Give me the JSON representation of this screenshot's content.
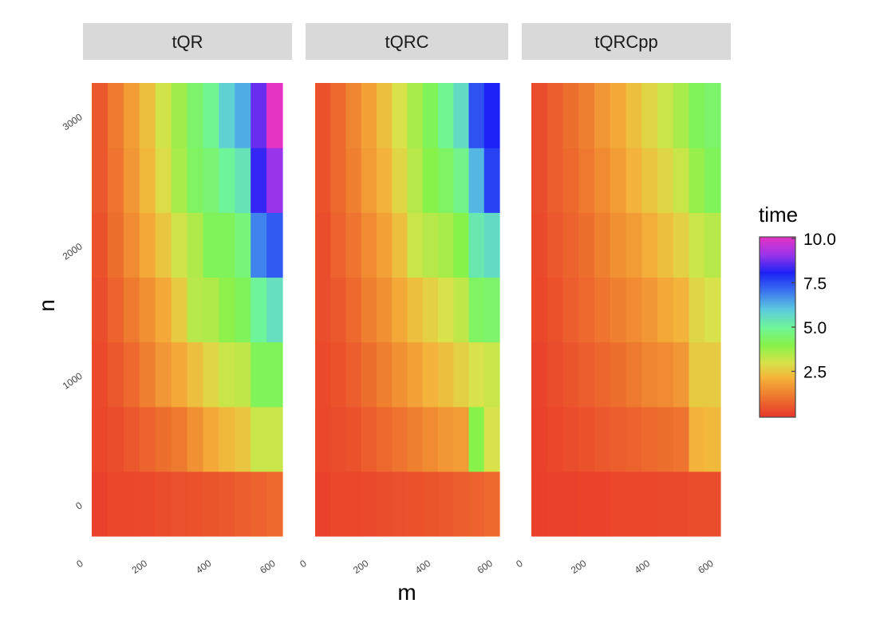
{
  "chart_data": {
    "type": "heatmap",
    "xlabel": "m",
    "ylabel": "n",
    "x_ticks": [
      "0",
      "200",
      "400",
      "600"
    ],
    "y_ticks": [
      "0",
      "1000",
      "2000",
      "3000"
    ],
    "x_range": [
      0,
      620
    ],
    "y_range": [
      -250,
      3250
    ],
    "x_values": [
      25,
      75,
      125,
      175,
      225,
      275,
      325,
      375,
      425,
      475,
      525,
      575
    ],
    "y_values": [
      0,
      500,
      1000,
      1500,
      2000,
      2500,
      3000
    ],
    "color_scale": {
      "title": "time",
      "ticks": [
        "2.5",
        "5.0",
        "7.5",
        "10.0"
      ],
      "min": 0,
      "max": 10,
      "stops": [
        {
          "v": 0.0,
          "color": "#e8362a"
        },
        {
          "v": 1.2,
          "color": "#ee7a2f"
        },
        {
          "v": 2.2,
          "color": "#f4b33a"
        },
        {
          "v": 3.0,
          "color": "#d8e24a"
        },
        {
          "v": 4.0,
          "color": "#86f24a"
        },
        {
          "v": 5.0,
          "color": "#6ef59a"
        },
        {
          "v": 6.0,
          "color": "#5bc8e0"
        },
        {
          "v": 7.0,
          "color": "#3a72f0"
        },
        {
          "v": 8.0,
          "color": "#1c22f5"
        },
        {
          "v": 9.0,
          "color": "#9a34ea"
        },
        {
          "v": 10.0,
          "color": "#e534c4"
        }
      ]
    },
    "facets": [
      {
        "label": "tQR",
        "z": [
          [
            0.2,
            0.3,
            0.3,
            0.35,
            0.4,
            0.45,
            0.5,
            0.55,
            0.6,
            0.7,
            0.8,
            0.9
          ],
          [
            0.3,
            0.4,
            0.6,
            0.8,
            1.0,
            1.2,
            1.6,
            2.0,
            2.3,
            2.5,
            3.2,
            3.2
          ],
          [
            0.35,
            0.6,
            0.9,
            1.3,
            1.7,
            2.0,
            2.4,
            2.8,
            3.2,
            3.3,
            4.2,
            4.2
          ],
          [
            0.4,
            0.8,
            1.2,
            1.6,
            2.0,
            2.6,
            3.4,
            3.5,
            3.9,
            4.2,
            5.0,
            5.5
          ],
          [
            0.5,
            1.0,
            1.5,
            2.0,
            2.5,
            3.1,
            3.5,
            4.2,
            4.2,
            4.6,
            6.8,
            7.3
          ],
          [
            0.6,
            1.1,
            1.7,
            2.3,
            2.9,
            3.6,
            4.3,
            4.5,
            5.0,
            5.4,
            8.2,
            9.0
          ],
          [
            0.6,
            1.2,
            1.8,
            2.4,
            3.1,
            3.7,
            4.4,
            4.9,
            5.8,
            6.3,
            8.6,
            10.0
          ]
        ]
      },
      {
        "label": "tQRC",
        "z": [
          [
            0.2,
            0.3,
            0.3,
            0.35,
            0.4,
            0.45,
            0.5,
            0.55,
            0.6,
            0.7,
            0.8,
            0.9
          ],
          [
            0.3,
            0.4,
            0.5,
            0.7,
            0.9,
            1.1,
            1.3,
            1.5,
            1.7,
            1.8,
            4.0,
            3.0
          ],
          [
            0.35,
            0.5,
            0.7,
            1.0,
            1.3,
            1.6,
            1.9,
            2.2,
            2.4,
            2.7,
            3.0,
            3.2
          ],
          [
            0.4,
            0.6,
            0.9,
            1.3,
            1.6,
            2.0,
            2.4,
            2.7,
            3.0,
            3.3,
            4.3,
            4.4
          ],
          [
            0.4,
            0.8,
            1.1,
            1.5,
            1.9,
            2.4,
            3.2,
            3.4,
            3.6,
            4.0,
            5.3,
            5.6
          ],
          [
            0.5,
            0.9,
            1.3,
            1.8,
            2.2,
            2.8,
            3.4,
            4.0,
            4.3,
            4.8,
            6.2,
            7.6
          ],
          [
            0.5,
            0.9,
            1.4,
            1.9,
            2.4,
            3.0,
            3.6,
            4.2,
            4.9,
            5.6,
            7.4,
            8.0
          ]
        ]
      },
      {
        "label": "tQRCpp",
        "z": [
          [
            0.15,
            0.2,
            0.2,
            0.25,
            0.25,
            0.3,
            0.3,
            0.3,
            0.35,
            0.35,
            0.4,
            0.4
          ],
          [
            0.2,
            0.3,
            0.4,
            0.5,
            0.6,
            0.7,
            0.8,
            0.9,
            1.0,
            1.1,
            2.2,
            2.3
          ],
          [
            0.25,
            0.4,
            0.55,
            0.7,
            0.85,
            1.0,
            1.2,
            1.4,
            1.5,
            1.7,
            2.6,
            2.6
          ],
          [
            0.3,
            0.5,
            0.7,
            0.9,
            1.1,
            1.3,
            1.5,
            1.7,
            2.0,
            2.2,
            2.8,
            3.0
          ],
          [
            0.35,
            0.6,
            0.8,
            1.0,
            1.3,
            1.6,
            1.8,
            2.1,
            2.4,
            2.7,
            3.2,
            3.4
          ],
          [
            0.4,
            0.7,
            0.9,
            1.2,
            1.5,
            1.8,
            2.2,
            2.5,
            2.8,
            3.2,
            3.8,
            4.2
          ],
          [
            0.4,
            0.7,
            1.0,
            1.3,
            1.7,
            2.0,
            2.4,
            2.8,
            3.2,
            3.6,
            4.2,
            4.4
          ]
        ]
      }
    ]
  }
}
